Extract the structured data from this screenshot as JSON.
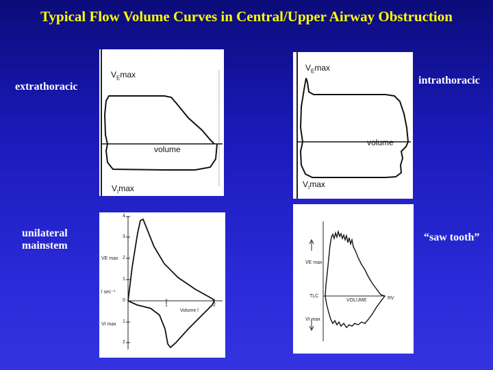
{
  "title": "Typical Flow Volume Curves in Central/Upper Airway Obstruction",
  "labels": {
    "extrathoracic": "extrathoracic",
    "intrathoracic": "intrathoracic",
    "unilateral_line1": "unilateral",
    "unilateral_line2": "mainstem",
    "saw_tooth": "“saw tooth”"
  },
  "panel_extrathoracic": {
    "ve_max_v": "V",
    "ve_max_sub": "E",
    "ve_max_rest": "max",
    "vi_max_v": "V",
    "vi_max_sub": "I",
    "vi_max_rest": "max",
    "volume": "volume"
  },
  "panel_intrathoracic": {
    "ve_max_v": "V",
    "ve_max_sub": "E",
    "ve_max_rest": "max",
    "vi_max_v": "V",
    "vi_max_sub": "I",
    "vi_max_rest": "max",
    "volume": "volume"
  },
  "panel_unilateral": {
    "ticks": [
      "4",
      "3",
      "2",
      "1",
      "0",
      "1",
      "2"
    ],
    "x_ticks": [
      "1",
      "2"
    ],
    "ve_max": "V̇E max",
    "unit": "l sec⁻¹",
    "vi_max": "V̇I max",
    "volume": "Volume l"
  },
  "panel_sawtooth": {
    "ve_max": "V̇E max",
    "tlc": "TLC",
    "volume": "VOLUME",
    "rv": "RV",
    "vi_max": "V̇I max"
  }
}
